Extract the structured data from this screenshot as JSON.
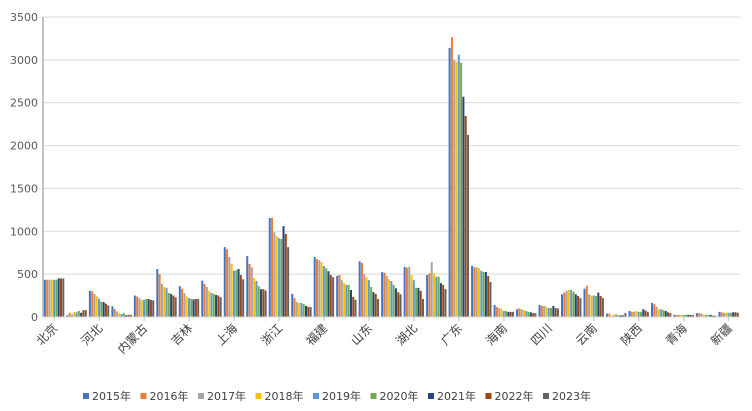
{
  "chart_data": {
    "type": "bar",
    "title": "",
    "xlabel": "",
    "ylabel": "",
    "ylim": [
      0,
      3500
    ],
    "yticks": [
      0,
      500,
      1000,
      1500,
      2000,
      2500,
      3000,
      3500
    ],
    "grid": true,
    "legend_position": "bottom",
    "categories": [
      "北京",
      "",
      "河北",
      "",
      "内蒙古",
      "",
      "吉林",
      "",
      "上海",
      "",
      "浙江",
      "",
      "福建",
      "",
      "山东",
      "",
      "湖北",
      "",
      "广东",
      "",
      "海南",
      "",
      "四川",
      "",
      "云南",
      "",
      "陕西",
      "",
      "青海",
      "",
      "新疆"
    ],
    "series": [
      {
        "name": "2015年",
        "color": "#4472C4",
        "values": [
          435,
          20,
          305,
          125,
          250,
          560,
          360,
          425,
          815,
          710,
          1155,
          270,
          700,
          480,
          650,
          525,
          585,
          490,
          3140,
          595,
          140,
          90,
          140,
          265,
          330,
          40,
          70,
          165,
          25,
          45,
          60
        ]
      },
      {
        "name": "2016年",
        "color": "#ED7D31",
        "values": [
          435,
          50,
          300,
          95,
          240,
          500,
          330,
          385,
          790,
          620,
          1155,
          220,
          675,
          490,
          630,
          515,
          575,
          510,
          3265,
          580,
          115,
          100,
          130,
          285,
          365,
          40,
          60,
          150,
          25,
          45,
          55
        ]
      },
      {
        "name": "2017年",
        "color": "#A5A5A5",
        "values": [
          435,
          30,
          270,
          65,
          220,
          385,
          280,
          350,
          700,
          580,
          990,
          175,
          665,
          430,
          500,
          480,
          585,
          640,
          3000,
          580,
          105,
          90,
          130,
          305,
          265,
          15,
          60,
          120,
          25,
          40,
          50
        ]
      },
      {
        "name": "2018年",
        "color": "#FFC000",
        "values": [
          435,
          60,
          240,
          45,
          200,
          350,
          240,
          305,
          620,
          455,
          945,
          165,
          640,
          395,
          465,
          440,
          490,
          510,
          2975,
          570,
          95,
          80,
          120,
          315,
          250,
          30,
          70,
          90,
          25,
          30,
          50
        ]
      },
      {
        "name": "2019年",
        "color": "#5B9BD5",
        "values": [
          435,
          55,
          215,
          35,
          200,
          340,
          220,
          280,
          540,
          420,
          920,
          165,
          595,
          375,
          430,
          420,
          430,
          470,
          3060,
          540,
          70,
          70,
          105,
          315,
          250,
          30,
          60,
          90,
          25,
          25,
          50
        ]
      },
      {
        "name": "2020年",
        "color": "#70AD47",
        "values": [
          435,
          70,
          180,
          45,
          210,
          280,
          210,
          270,
          545,
          360,
          910,
          150,
          570,
          375,
          350,
          375,
          340,
          470,
          2965,
          525,
          70,
          60,
          105,
          295,
          245,
          20,
          60,
          80,
          25,
          25,
          50
        ]
      },
      {
        "name": "2021年",
        "color": "#264478",
        "values": [
          450,
          50,
          175,
          20,
          210,
          270,
          205,
          257,
          560,
          325,
          1060,
          130,
          535,
          315,
          290,
          335,
          340,
          395,
          2570,
          525,
          60,
          55,
          130,
          265,
          285,
          20,
          90,
          70,
          25,
          25,
          55
        ]
      },
      {
        "name": "2022年",
        "color": "#9E480E",
        "values": [
          450,
          80,
          155,
          25,
          200,
          250,
          210,
          250,
          490,
          325,
          970,
          120,
          490,
          235,
          270,
          290,
          305,
          375,
          2345,
          480,
          60,
          45,
          105,
          245,
          245,
          20,
          75,
          55,
          25,
          15,
          55
        ]
      },
      {
        "name": "2023年",
        "color": "#636363",
        "values": [
          450,
          80,
          135,
          25,
          195,
          230,
          210,
          230,
          440,
          310,
          815,
          115,
          465,
          200,
          210,
          265,
          210,
          325,
          2125,
          410,
          60,
          45,
          100,
          220,
          220,
          45,
          60,
          45,
          25,
          15,
          50
        ]
      }
    ]
  }
}
